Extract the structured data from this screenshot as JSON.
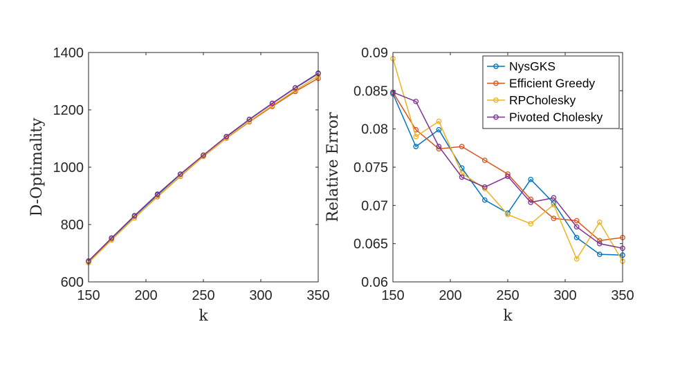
{
  "colors": {
    "NysGKS": "#0072BD",
    "Efficient Greedy": "#D95319",
    "RPCholesky": "#EDB120",
    "Pivoted Cholesky": "#7E2F8E",
    "axis": "#262626"
  },
  "chart_data": [
    {
      "type": "line",
      "title": "",
      "xlabel": "k",
      "ylabel": "D-Optimality",
      "xlim": [
        150,
        350
      ],
      "ylim": [
        600,
        1400
      ],
      "xticks": [
        150,
        200,
        250,
        300,
        350
      ],
      "yticks": [
        600,
        800,
        1000,
        1200,
        1400
      ],
      "xtick_labels": [
        "150",
        "200",
        "250",
        "300",
        "350"
      ],
      "ytick_labels": [
        "600",
        "800",
        "1000",
        "1200",
        "1400"
      ],
      "x": [
        150,
        170,
        190,
        210,
        230,
        250,
        270,
        290,
        310,
        330,
        350
      ],
      "series": [
        {
          "name": "NysGKS",
          "values": [
            672,
            752,
            829,
            903,
            975,
            1042,
            1106,
            1166,
            1222,
            1276,
            1326
          ]
        },
        {
          "name": "Efficient Greedy",
          "values": [
            668,
            747,
            823,
            897,
            968,
            1038,
            1101,
            1158,
            1212,
            1264,
            1310
          ]
        },
        {
          "name": "RPCholesky",
          "values": [
            667,
            746,
            823,
            898,
            969,
            1039,
            1102,
            1160,
            1215,
            1268,
            1318
          ]
        },
        {
          "name": "Pivoted Cholesky",
          "values": [
            673,
            753,
            831,
            906,
            976,
            1042,
            1107,
            1167,
            1223,
            1277,
            1328
          ]
        }
      ]
    },
    {
      "type": "line",
      "title": "",
      "xlabel": "k",
      "ylabel": "Relative Error",
      "xlim": [
        150,
        350
      ],
      "ylim": [
        0.06,
        0.09
      ],
      "xticks": [
        150,
        200,
        250,
        300,
        350
      ],
      "yticks": [
        0.06,
        0.065,
        0.07,
        0.075,
        0.08,
        0.085,
        0.09
      ],
      "xtick_labels": [
        "150",
        "200",
        "250",
        "300",
        "350"
      ],
      "ytick_labels": [
        "0.06",
        "0.065",
        "0.07",
        "0.075",
        "0.08",
        "0.085",
        "0.09"
      ],
      "legend_position": "top-right",
      "x": [
        150,
        170,
        190,
        210,
        230,
        250,
        270,
        290,
        310,
        330,
        350
      ],
      "series": [
        {
          "name": "NysGKS",
          "values": [
            0.0846,
            0.0777,
            0.0799,
            0.0749,
            0.0707,
            0.069,
            0.0734,
            0.0703,
            0.0658,
            0.0636,
            0.0635
          ]
        },
        {
          "name": "Efficient Greedy",
          "values": [
            0.0848,
            0.0799,
            0.0774,
            0.0777,
            0.0759,
            0.0741,
            0.0708,
            0.0683,
            0.068,
            0.0654,
            0.0658
          ]
        },
        {
          "name": "RPCholesky",
          "values": [
            0.0892,
            0.079,
            0.081,
            0.0742,
            0.0722,
            0.0688,
            0.0676,
            0.0701,
            0.063,
            0.0678,
            0.0627
          ]
        },
        {
          "name": "Pivoted Cholesky",
          "values": [
            0.0848,
            0.0836,
            0.0777,
            0.0737,
            0.0724,
            0.0738,
            0.0704,
            0.071,
            0.0672,
            0.065,
            0.0644
          ]
        }
      ]
    }
  ]
}
